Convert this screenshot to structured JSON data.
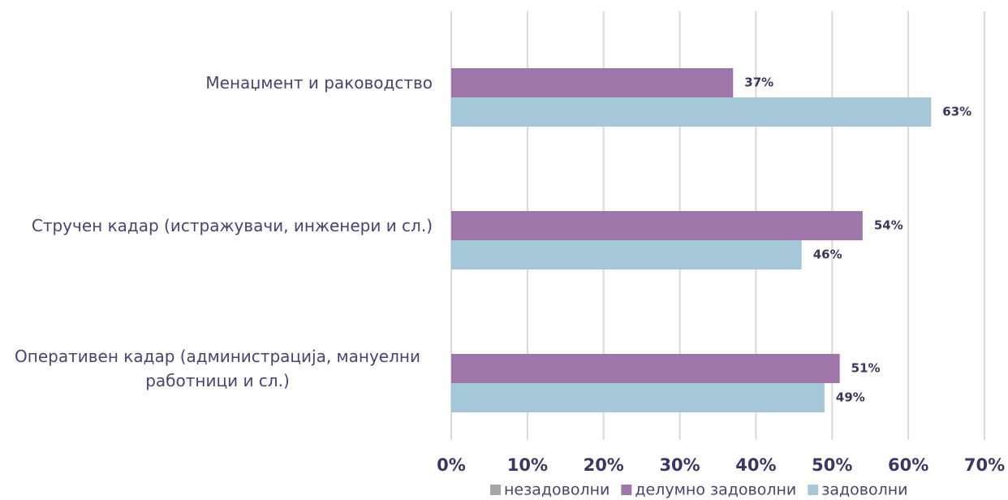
{
  "chart_data": {
    "type": "bar",
    "orientation": "horizontal",
    "categories": [
      "Менаџмент и раководство",
      "Стручен кадар (истражувачи, инженери и сл.)",
      "Оперативен кадар (администрација, мануелни работници и сл.)"
    ],
    "series": [
      {
        "name": "незадоволни",
        "color": "#a6a6a6",
        "values": [
          0,
          0,
          0
        ]
      },
      {
        "name": "делумно задоволни",
        "color": "#9e76aa",
        "values": [
          37,
          54,
          51
        ],
        "value_labels": [
          "37%",
          "54%",
          "51%"
        ]
      },
      {
        "name": "задоволни",
        "color": "#a5c8d8",
        "values": [
          63,
          46,
          49
        ],
        "value_labels": [
          "63%",
          "46%",
          "49%"
        ]
      }
    ],
    "xlim": [
      0,
      70
    ],
    "xticks": [
      {
        "value": 0,
        "label": "0%"
      },
      {
        "value": 10,
        "label": "10%"
      },
      {
        "value": 20,
        "label": "20%"
      },
      {
        "value": 30,
        "label": "30%"
      },
      {
        "value": 40,
        "label": "40%"
      },
      {
        "value": 50,
        "label": "50%"
      },
      {
        "value": 60,
        "label": "60%"
      },
      {
        "value": 70,
        "label": "70%"
      }
    ],
    "grid": true,
    "legend": "bottom"
  }
}
